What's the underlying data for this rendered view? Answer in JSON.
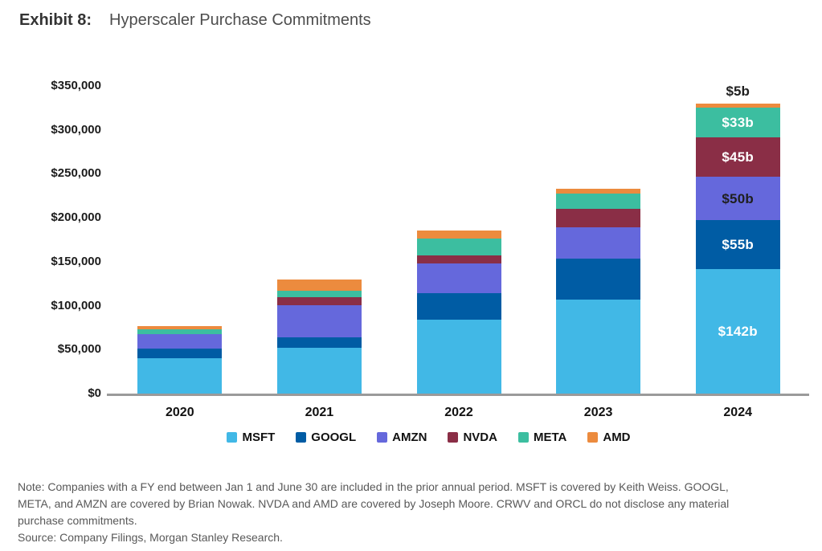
{
  "header": {
    "exhibit_label": "Exhibit 8:",
    "title": "Hyperscaler Purchase Commitments"
  },
  "chart_data": {
    "type": "bar",
    "stacked": true,
    "title": "Hyperscaler Purchase Commitments",
    "categories": [
      "2020",
      "2021",
      "2022",
      "2023",
      "2024"
    ],
    "value_unit": "USD millions",
    "series": [
      {
        "name": "MSFT",
        "color": "#41B8E6",
        "values": [
          40000,
          52000,
          84000,
          107000,
          142000
        ],
        "labels": [
          null,
          null,
          null,
          null,
          "$142b"
        ],
        "label_text_color": "#FFFFFF"
      },
      {
        "name": "GOOGL",
        "color": "#005CA4",
        "values": [
          11000,
          12000,
          30000,
          47000,
          55000
        ],
        "labels": [
          null,
          null,
          null,
          null,
          "$55b"
        ],
        "label_text_color": "#FFFFFF"
      },
      {
        "name": "AMZN",
        "color": "#6568DC",
        "values": [
          17000,
          37000,
          34000,
          35000,
          50000
        ],
        "labels": [
          null,
          null,
          null,
          null,
          "$50b"
        ],
        "label_text_color": "#1F1F1F"
      },
      {
        "name": "NVDA",
        "color": "#8A2E46",
        "values": [
          0,
          9000,
          9000,
          21000,
          45000
        ],
        "labels": [
          null,
          null,
          null,
          null,
          "$45b"
        ],
        "label_text_color": "#FFFFFF"
      },
      {
        "name": "META",
        "color": "#3CBEA0",
        "values": [
          5000,
          7000,
          19000,
          18000,
          33000
        ],
        "labels": [
          null,
          null,
          null,
          null,
          "$33b"
        ],
        "label_text_color": "#FFFFFF"
      },
      {
        "name": "AMD",
        "color": "#EC8B3E",
        "values": [
          4000,
          13000,
          10000,
          5000,
          5000
        ],
        "labels": [
          null,
          null,
          null,
          null,
          "$5b"
        ],
        "label_text_color": "#1F1F1F",
        "label_position": "above"
      }
    ],
    "ylim": [
      0,
      350000
    ],
    "ytick_step": 50000,
    "ytick_labels": [
      "$0",
      "$50,000",
      "$100,000",
      "$150,000",
      "$200,000",
      "$250,000",
      "$300,000",
      "$350,000"
    ],
    "grid": false,
    "legend_position": "bottom",
    "baseline_color": "#9A9A9A"
  },
  "footnote": {
    "note_lines": [
      "Note: Companies with a FY end between Jan 1 and June 30 are included in the prior annual period. MSFT is covered by Keith Weiss. GOOGL,",
      "META, and AMZN are covered by Brian Nowak. NVDA and AMD are covered by Joseph Moore. CRWV and ORCL do not disclose any material",
      "purchase commitments."
    ],
    "source": "Source: Company Filings, Morgan Stanley Research."
  }
}
